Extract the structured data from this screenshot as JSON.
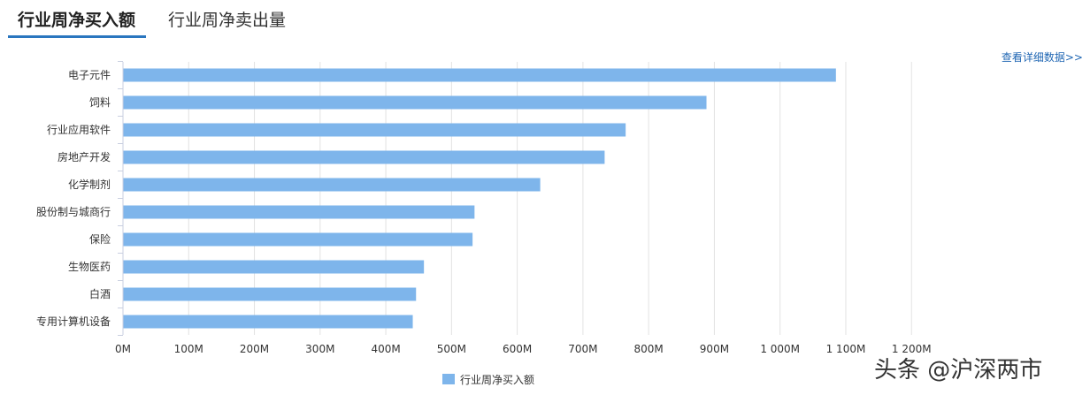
{
  "tabs": [
    {
      "label": "行业周净买入额",
      "active": true
    },
    {
      "label": "行业周净卖出量",
      "active": false
    }
  ],
  "detail_link": "查看详细数据>>",
  "watermark": "头条 @沪深两市",
  "colors": {
    "bar": "#7eb5eb",
    "accent": "#2a76bf",
    "grid": "#e2e2e2",
    "axis": "#c9cfe0",
    "link": "#1f66b3"
  },
  "chart_data": {
    "type": "bar",
    "orientation": "horizontal",
    "categories": [
      "电子元件",
      "饲料",
      "行业应用软件",
      "房地产开发",
      "化学制剂",
      "股份制与城商行",
      "保险",
      "生物医药",
      "白酒",
      "专用计算机设备"
    ],
    "series": [
      {
        "name": "行业周净买入额",
        "values": [
          1085,
          888,
          765,
          733,
          635,
          535,
          532,
          458,
          446,
          441
        ]
      }
    ],
    "x_ticks": [
      0,
      100,
      200,
      300,
      400,
      500,
      600,
      700,
      800,
      900,
      1000,
      1100,
      1200
    ],
    "x_tick_labels": [
      "0M",
      "100M",
      "200M",
      "300M",
      "400M",
      "500M",
      "600M",
      "700M",
      "800M",
      "900M",
      "1 000M",
      "1 100M",
      "1 200M"
    ],
    "xlim": [
      0,
      1200
    ],
    "units": "M",
    "grid": true,
    "legend_position": "bottom-center"
  }
}
